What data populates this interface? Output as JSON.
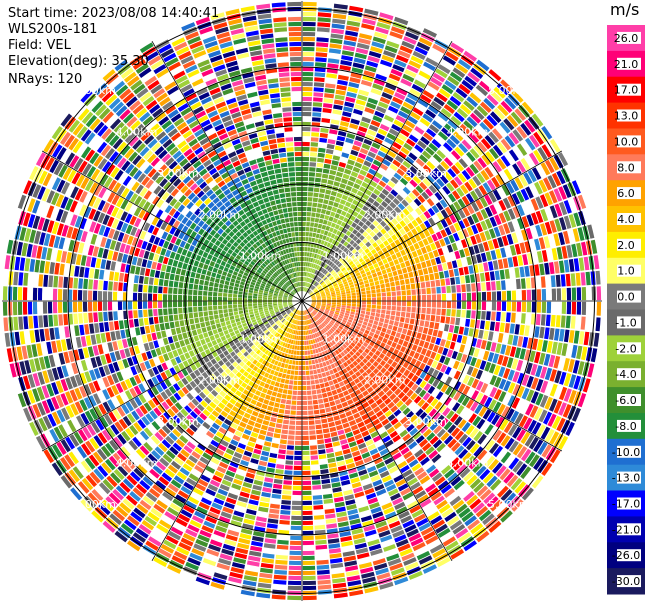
{
  "header": {
    "start_time": "Start time: 2023/08/08 14:40:41",
    "instrument": "WLS200s-181",
    "field": "Field: VEL",
    "elevation": "Elevation(deg): 35.30",
    "nrays": "NRays: 120"
  },
  "colorbar": {
    "unit": "m/s",
    "labels": [
      "26.0",
      "21.0",
      "17.0",
      "13.0",
      "10.0",
      "8.0",
      "6.0",
      "4.0",
      "2.0",
      "1.0",
      "0.0",
      "-1.0",
      "-2.0",
      "-4.0",
      "-6.0",
      "-8.0",
      "-10.0",
      "-13.0",
      "-17.0",
      "-21.0",
      "-26.0",
      "-30.0"
    ],
    "colors": [
      "#ff3ea8",
      "#ff0077",
      "#ff0000",
      "#ff3300",
      "#ff5a1f",
      "#ff7a5a",
      "#ffa200",
      "#ffc200",
      "#ffee00",
      "#ffff66",
      "#7a7a7a",
      "#6a6a6a",
      "#9ed13a",
      "#7ab02f",
      "#3f8f2c",
      "#238f3a",
      "#1f6fd1",
      "#2e8ad8",
      "#0000ff",
      "#0000b0",
      "#000080",
      "#1a1a5e"
    ]
  },
  "chart_data": {
    "type": "heatmap",
    "projection": "polar-ppi",
    "field": "VEL",
    "units": "m/s",
    "nrays": 120,
    "elevation_deg": 35.3,
    "range_ring_labels": [
      "1.00km",
      "2.00km",
      "3.00km",
      "4.00km",
      "5.00km"
    ],
    "color_scale": {
      "min": -30.0,
      "max": 26.0,
      "ticks": [
        26.0,
        21.0,
        17.0,
        13.0,
        10.0,
        8.0,
        6.0,
        4.0,
        2.0,
        1.0,
        0.0,
        -1.0,
        -2.0,
        -4.0,
        -6.0,
        -8.0,
        -10.0,
        -13.0,
        -17.0,
        -21.0,
        -26.0,
        -30.0
      ]
    },
    "data_pattern": {
      "positive_direction": "south-east",
      "negative_direction": "north-west",
      "coherent_range_km": 2.5,
      "beyond_coherent": "noise"
    }
  }
}
